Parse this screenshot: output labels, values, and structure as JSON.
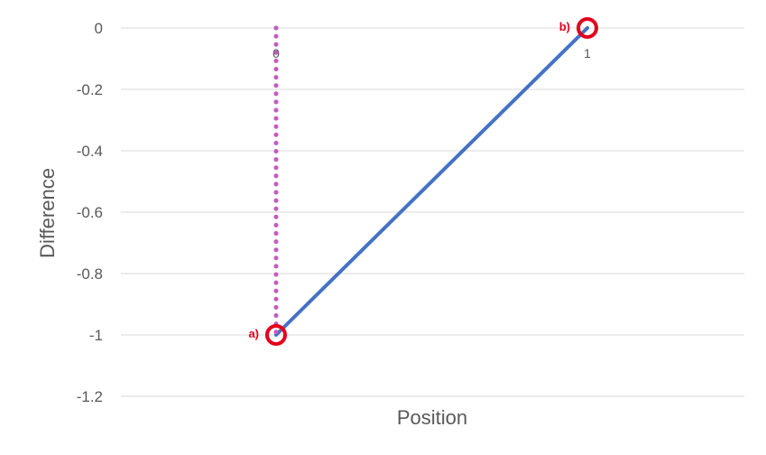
{
  "chart_data": {
    "type": "line",
    "title": "",
    "xlabel": "Position",
    "ylabel": "Difference",
    "ylim": [
      -1.2,
      0
    ],
    "yticks": [
      "0",
      "-0.2",
      "-0.4",
      "-0.6",
      "-0.8",
      "-1",
      "-1.2"
    ],
    "xlim": [
      0,
      1
    ],
    "xticks": [
      "0",
      "1"
    ],
    "grid": true,
    "legend": "none",
    "series": [
      {
        "style": "solid",
        "color": "#4472c4",
        "x": [
          0,
          1
        ],
        "y": [
          -1,
          0
        ]
      },
      {
        "style": "dotted",
        "color": "#c55ac4",
        "x": [
          0,
          0
        ],
        "y": [
          0,
          -1
        ]
      }
    ],
    "annotations": [
      {
        "label": "a)",
        "x": 0,
        "y": -1,
        "marker": "circle",
        "color": "#e3001b"
      },
      {
        "label": "b)",
        "x": 1,
        "y": 0,
        "marker": "circle",
        "color": "#e3001b"
      }
    ]
  }
}
